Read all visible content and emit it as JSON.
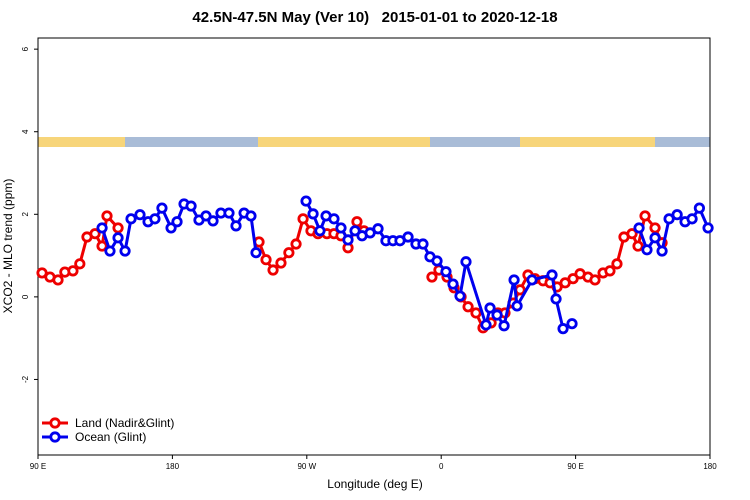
{
  "chart_data": {
    "type": "line",
    "title": "42.5N-47.5N May (Ver 10)   2015-01-01 to 2020-12-18",
    "x_label": "Longitude (deg E)",
    "y_label": "XCO2 - MLO trend (ppm)",
    "xlim": [
      90,
      540
    ],
    "xticks": [
      {
        "value": 90,
        "label": "90 E"
      },
      {
        "value": 180,
        "label": "180"
      },
      {
        "value": 270,
        "label": "90 W"
      },
      {
        "value": 360,
        "label": "0"
      },
      {
        "value": 450,
        "label": "90 E"
      },
      {
        "value": 540,
        "label": "180"
      }
    ],
    "ylim": [
      -3.83,
      6.27
    ],
    "yticks": [
      -2,
      0,
      2,
      4,
      6
    ],
    "legend": "bottom-left",
    "series": [
      {
        "name": "Land (Nadir&Glint)",
        "color": "#ee0000",
        "x": [
          92.7,
          98,
          103.4,
          108,
          113.4,
          118,
          122.8,
          128.2,
          132.9,
          136.2,
          143.6,
          null,
          238,
          242.7,
          247.4,
          252.7,
          258,
          262.8,
          267.5,
          272.8,
          277.5,
          283.5,
          288.2,
          292.9,
          297.6,
          303.6,
          308.3,
          null,
          353.8,
          358.5,
          363.9,
          368.6,
          373.3,
          378,
          383.3,
          388,
          393.4,
          398,
          402.7,
          408.1,
          412.8,
          418.1,
          422.8,
          428.2,
          432.9,
          437.6,
          443,
          448.3,
          453,
          458.3,
          463,
          468.4,
          473,
          477.7,
          482.4,
          487.8,
          491.8,
          496.5,
          503.2,
          507.9
        ],
        "values": [
          0.58,
          0.48,
          0.41,
          0.6,
          0.63,
          0.8,
          1.45,
          1.53,
          1.23,
          1.96,
          1.67,
          null,
          1.33,
          0.9,
          0.65,
          0.82,
          1.07,
          1.28,
          1.89,
          1.6,
          1.53,
          1.53,
          1.53,
          1.48,
          1.19,
          1.82,
          1.6,
          null,
          0.48,
          0.65,
          0.48,
          0.22,
          0,
          -0.24,
          -0.39,
          -0.75,
          -0.63,
          -0.39,
          -0.39,
          -0.15,
          0.17,
          0.53,
          0.44,
          0.39,
          0.34,
          0.24,
          0.34,
          0.44,
          0.56,
          0.48,
          0.41,
          0.58,
          0.63,
          0.8,
          1.45,
          1.53,
          1.23,
          1.96,
          1.67,
          1.31
        ]
      },
      {
        "name": "Ocean (Glint)",
        "color": "#0000ee",
        "x": [
          132.9,
          138.2,
          143.6,
          148.3,
          152.3,
          158.3,
          163.7,
          168.3,
          173,
          179.1,
          183.1,
          187.8,
          192.5,
          197.8,
          202.5,
          207.2,
          212.5,
          217.9,
          222.6,
          228,
          232.6,
          236,
          null,
          269.5,
          274.2,
          278.8,
          282.9,
          288.2,
          292.9,
          297.6,
          302.3,
          307,
          312.4,
          317.7,
          323,
          327.7,
          332.4,
          337.8,
          343.1,
          347.8,
          352.5,
          357.2,
          363.2,
          367.9,
          372.6,
          376.6,
          390,
          392.7,
          397.4,
          402.1,
          408.8,
          410.8,
          420.8,
          434.2,
          436.9,
          441.6,
          447.6,
          null,
          492.5,
          497.8,
          503.2,
          507.9,
          512.6,
          518,
          523.3,
          528,
          532.9,
          538.7
        ],
        "values": [
          1.67,
          1.11,
          1.43,
          1.11,
          1.89,
          1.99,
          1.82,
          1.89,
          2.15,
          1.67,
          1.82,
          2.25,
          2.2,
          1.86,
          1.96,
          1.84,
          2.03,
          2.03,
          1.72,
          2.03,
          1.96,
          1.07,
          null,
          2.32,
          2.01,
          1.6,
          1.96,
          1.89,
          1.67,
          1.38,
          1.6,
          1.48,
          1.55,
          1.65,
          1.36,
          1.36,
          1.36,
          1.45,
          1.28,
          1.28,
          0.97,
          0.87,
          0.61,
          0.31,
          0.02,
          0.85,
          -0.68,
          -0.27,
          -0.44,
          -0.7,
          0.41,
          -0.22,
          0.41,
          0.53,
          -0.05,
          -0.77,
          -0.65,
          null,
          1.67,
          1.14,
          1.43,
          1.11,
          1.89,
          1.99,
          1.82,
          1.89,
          2.15,
          1.67
        ]
      }
    ]
  }
}
